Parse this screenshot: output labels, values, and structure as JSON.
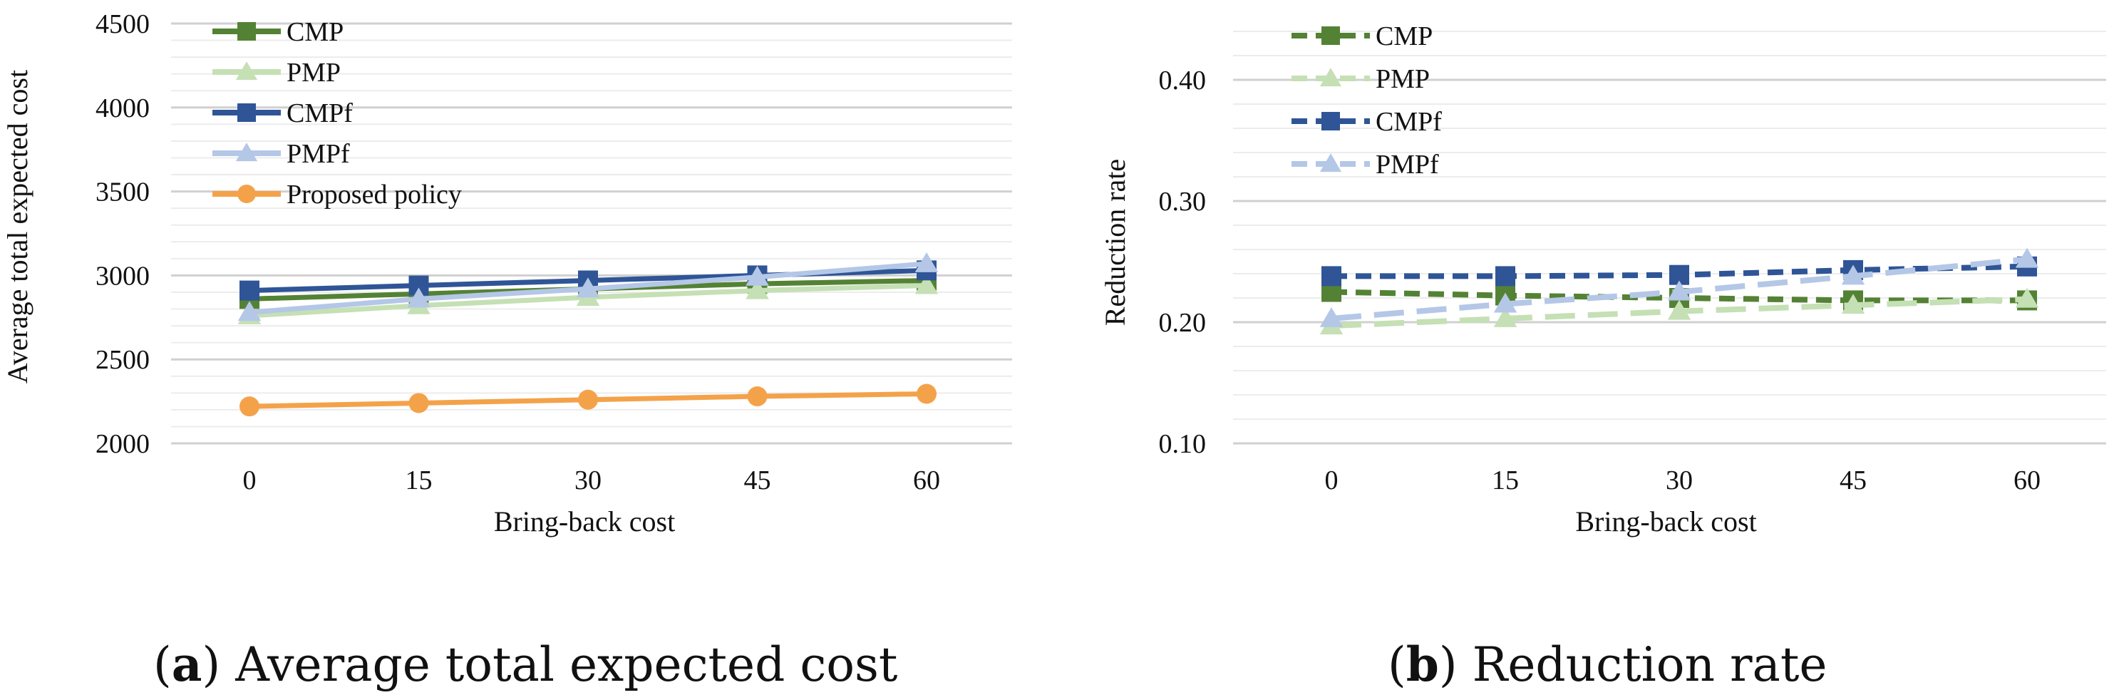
{
  "chart_data": [
    {
      "type": "line",
      "ylabel": "Average total expected cost",
      "xlabel": "Bring-back cost",
      "categories": [
        "0",
        "15",
        "30",
        "45",
        "60"
      ],
      "ylim": [
        2000,
        4500
      ],
      "yticks": [
        "2000",
        "2500",
        "3000",
        "3500",
        "4000",
        "4500"
      ],
      "legend_position": "top-left",
      "series": [
        {
          "name": "CMP",
          "color": "#548235",
          "marker": "square",
          "dash": "solid",
          "values": [
            2860,
            2890,
            2920,
            2950,
            2970
          ]
        },
        {
          "name": "PMP",
          "color": "#c5e0b4",
          "marker": "triangle",
          "dash": "solid",
          "values": [
            2760,
            2820,
            2870,
            2910,
            2940
          ]
        },
        {
          "name": "CMPf",
          "color": "#2f5597",
          "marker": "square",
          "dash": "solid",
          "values": [
            2910,
            2940,
            2970,
            3000,
            3030
          ]
        },
        {
          "name": "PMPf",
          "color": "#b4c7e7",
          "marker": "triangle",
          "dash": "solid",
          "values": [
            2780,
            2860,
            2920,
            2990,
            3070
          ]
        },
        {
          "name": "Proposed policy",
          "color": "#f4a24a",
          "marker": "circle",
          "dash": "solid",
          "values": [
            2220,
            2240,
            2260,
            2280,
            2295
          ]
        }
      ]
    },
    {
      "type": "line",
      "ylabel": "Reduction rate",
      "xlabel": "Bring-back cost",
      "categories": [
        "0",
        "15",
        "30",
        "45",
        "60"
      ],
      "ylim": [
        0.1,
        0.45
      ],
      "yticks": [
        "0.10",
        "0.20",
        "0.30",
        "0.40"
      ],
      "legend_position": "top-left",
      "series": [
        {
          "name": "CMP",
          "color": "#548235",
          "marker": "square",
          "dash": "dashed",
          "values": [
            0.225,
            0.222,
            0.22,
            0.218,
            0.218
          ]
        },
        {
          "name": "PMP",
          "color": "#c5e0b4",
          "marker": "triangle",
          "dash": "dashed",
          "values": [
            0.197,
            0.203,
            0.209,
            0.214,
            0.219
          ]
        },
        {
          "name": "CMPf",
          "color": "#2f5597",
          "marker": "square",
          "dash": "dashed",
          "values": [
            0.238,
            0.238,
            0.239,
            0.243,
            0.246
          ]
        },
        {
          "name": "PMPf",
          "color": "#b4c7e7",
          "marker": "triangle",
          "dash": "dashed",
          "values": [
            0.203,
            0.215,
            0.225,
            0.238,
            0.252
          ]
        }
      ]
    }
  ],
  "captions": {
    "a_letter": "a",
    "a_text": " Average total expected cost",
    "b_letter": "b",
    "b_text": " Reduction rate"
  }
}
